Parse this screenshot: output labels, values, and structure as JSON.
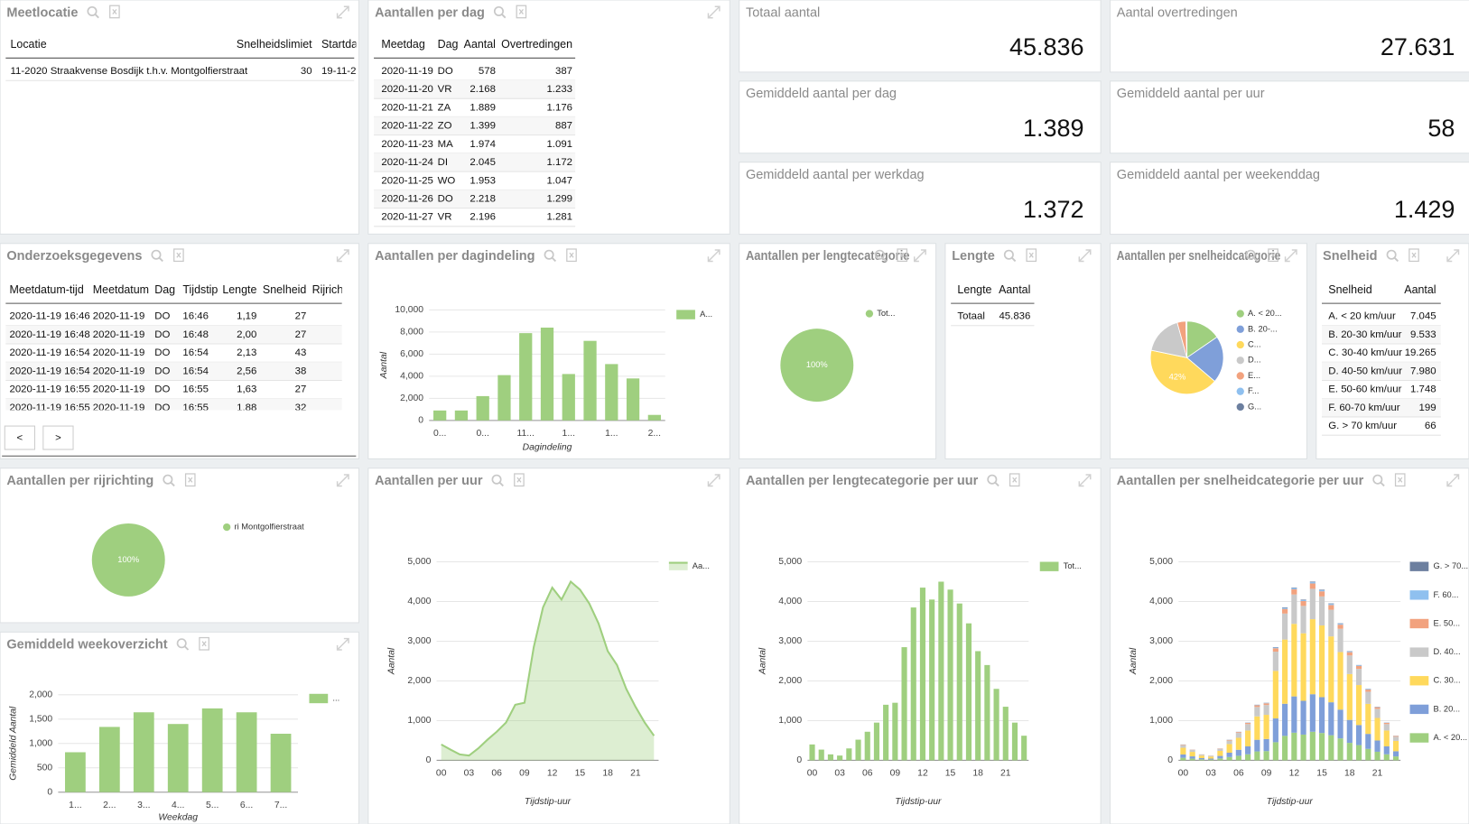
{
  "kpis": [
    {
      "label": "Totaal aantal",
      "value": "45.836"
    },
    {
      "label": "Aantal overtredingen",
      "value": "27.631"
    },
    {
      "label": "Gemiddeld aantal per dag",
      "value": "1.389"
    },
    {
      "label": "Gemiddeld aantal per uur",
      "value": "58"
    },
    {
      "label": "Gemiddeld aantal per werkdag",
      "value": "1.372"
    },
    {
      "label": "Gemiddeld aantal per weekenddag",
      "value": "1.429"
    }
  ],
  "tables": [
    {
      "title": "Meetlocatie",
      "headers": [
        "Locatie",
        "Snelheidslimiet",
        "Startda"
      ],
      "rows": [
        [
          "11-2020 Straakvense Bosdijk t.h.v. Montgolfierstraat",
          "30",
          "19-11-2"
        ]
      ]
    },
    {
      "title": "Aantallen per dag",
      "headers": [
        "Meetdag",
        "Dag",
        "Aantal",
        "Overtredingen"
      ],
      "rows": [
        [
          "2020-11-19",
          "DO",
          "578",
          "387"
        ],
        [
          "2020-11-20",
          "VR",
          "2.168",
          "1.233"
        ],
        [
          "2020-11-21",
          "ZA",
          "1.889",
          "1.176"
        ],
        [
          "2020-11-22",
          "ZO",
          "1.399",
          "887"
        ],
        [
          "2020-11-23",
          "MA",
          "1.974",
          "1.091"
        ],
        [
          "2020-11-24",
          "DI",
          "2.045",
          "1.172"
        ],
        [
          "2020-11-25",
          "WO",
          "1.953",
          "1.047"
        ],
        [
          "2020-11-26",
          "DO",
          "2.218",
          "1.299"
        ],
        [
          "2020-11-27",
          "VR",
          "2.196",
          "1.281"
        ]
      ]
    },
    {
      "title": "Onderzoeksgegevens",
      "headers": [
        "Meetdatum-tijd",
        "Meetdatum",
        "Dag",
        "Tijdstip",
        "Lengte",
        "Snelheid",
        "Rijrich"
      ],
      "rows": [
        [
          "2020-11-19 16:46",
          "2020-11-19",
          "DO",
          "16:46",
          "1,19",
          "27"
        ],
        [
          "2020-11-19 16:48",
          "2020-11-19",
          "DO",
          "16:48",
          "2,00",
          "27"
        ],
        [
          "2020-11-19 16:54",
          "2020-11-19",
          "DO",
          "16:54",
          "2,13",
          "43"
        ],
        [
          "2020-11-19 16:54",
          "2020-11-19",
          "DO",
          "16:54",
          "2,56",
          "38"
        ],
        [
          "2020-11-19 16:55",
          "2020-11-19",
          "DO",
          "16:55",
          "1,63",
          "27"
        ],
        [
          "2020-11-19 16:55",
          "2020-11-19",
          "DO",
          "16:55",
          "1,88",
          "32"
        ]
      ],
      "pager": [
        "<",
        ">"
      ]
    },
    {
      "title": "Lengte",
      "headers": [
        "Lengte",
        "Aantal"
      ],
      "rows": [
        [
          "Totaal",
          "45.836"
        ]
      ]
    },
    {
      "title": "Snelheid",
      "headers": [
        "Snelheid",
        "Aantal"
      ],
      "rows": [
        [
          "A. < 20 km/uur",
          "7.045"
        ],
        [
          "B. 20-30 km/uur",
          "9.533"
        ],
        [
          "C. 30-40 km/uur",
          "19.265"
        ],
        [
          "D. 40-50 km/uur",
          "7.980"
        ],
        [
          "E. 50-60 km/uur",
          "1.748"
        ],
        [
          "F. 60-70 km/uur",
          "199"
        ],
        [
          "G. > 70 km/uur",
          "66"
        ]
      ]
    }
  ],
  "chart_data": [
    {
      "type": "bar",
      "title": "Aantallen per dagindeling",
      "x_label": "Dagindeling",
      "y_label": "Aantal",
      "categories": [
        "0...",
        null,
        "0...",
        null,
        "11...",
        null,
        "1...",
        null,
        "1...",
        null,
        "2..."
      ],
      "series": [
        {
          "name": "A...",
          "color": "#9fcf7f",
          "values": [
            900,
            900,
            2200,
            4100,
            7900,
            8400,
            4200,
            7200,
            5100,
            3800,
            500
          ]
        }
      ],
      "ylim": [
        0,
        10000
      ],
      "yticks": [
        0,
        {
          "value": 2000,
          "label": "2,000"
        },
        {
          "value": 4000,
          "label": "4,000"
        },
        {
          "value": 6000,
          "label": "6,000"
        },
        {
          "value": 8000,
          "label": "8,000"
        },
        {
          "value": 10000,
          "label": "10,000"
        }
      ],
      "grid": true
    },
    {
      "type": "pie",
      "title": "Aantallen per lengtecategorie",
      "categories": [
        "Tot..."
      ],
      "values": [
        100
      ],
      "value_labels": [
        "100%"
      ],
      "colors": [
        "#9fcf7f"
      ]
    },
    {
      "type": "pie",
      "title": "Aantallen per snelheidcategorie",
      "categories": [
        "A. < 20...",
        "B. 20-...",
        "C...",
        "D...",
        "E...",
        "F...",
        "G..."
      ],
      "values": [
        15.4,
        20.8,
        42.0,
        17.4,
        3.8,
        0.4,
        0.1
      ],
      "value_labels": [
        null,
        null,
        "42%",
        null,
        null,
        null,
        null
      ],
      "colors": [
        "#9fcf7f",
        "#7f9fd9",
        "#ffd95c",
        "#c9c9c9",
        "#f2a27e",
        "#8fc0ef",
        "#6c7f9f"
      ]
    },
    {
      "type": "pie",
      "title": "Aantallen per rijrichting",
      "categories": [
        "ri Montgolfierstraat"
      ],
      "values": [
        100
      ],
      "value_labels": [
        "100%"
      ],
      "colors": [
        "#9fcf7f"
      ]
    },
    {
      "type": "bar",
      "title": "Gemiddeld weekoverzicht",
      "x_label": "Weekdag",
      "y_label": "Gemiddeld Aantal",
      "categories": [
        "1...",
        "2...",
        "3...",
        "4...",
        "5...",
        "6...",
        "7..."
      ],
      "series": [
        {
          "name": "...",
          "color": "#9fcf7f",
          "values": [
            820,
            1340,
            1640,
            1400,
            1720,
            1640,
            1200
          ]
        }
      ],
      "ylim": [
        0,
        2000
      ],
      "yticks": [
        0,
        500,
        {
          "value": 1000,
          "label": "1,000"
        },
        {
          "value": 1500,
          "label": "1,500"
        },
        {
          "value": 2000,
          "label": "2,000"
        }
      ],
      "grid": true
    },
    {
      "type": "area",
      "title": "Aantallen per uur",
      "x_label": "Tijdstip-uur",
      "y_label": "Aantal",
      "categories": [
        "00",
        null,
        null,
        "03",
        null,
        null,
        "06",
        null,
        null,
        "09",
        null,
        null,
        "12",
        null,
        null,
        "15",
        null,
        null,
        "18",
        null,
        null,
        "21",
        null,
        null
      ],
      "series": [
        {
          "name": "Aa...",
          "color": "#9fcf7f",
          "values": [
            400,
            270,
            150,
            120,
            300,
            520,
            720,
            950,
            1400,
            1450,
            2850,
            3850,
            4350,
            4050,
            4500,
            4300,
            3950,
            3450,
            2750,
            2400,
            1800,
            1350,
            950,
            620
          ]
        }
      ],
      "ylim": [
        0,
        5000
      ],
      "yticks": [
        0,
        {
          "value": 1000,
          "label": "1,000"
        },
        {
          "value": 2000,
          "label": "2,000"
        },
        {
          "value": 3000,
          "label": "3,000"
        },
        {
          "value": 4000,
          "label": "4,000"
        },
        {
          "value": 5000,
          "label": "5,000"
        }
      ],
      "grid": true
    },
    {
      "type": "bar",
      "title": "Aantallen per lengtecategorie per uur",
      "x_label": "Tijdstip-uur",
      "y_label": "Aantal",
      "categories": [
        "00",
        null,
        null,
        "03",
        null,
        null,
        "06",
        null,
        null,
        "09",
        null,
        null,
        "12",
        null,
        null,
        "15",
        null,
        null,
        "18",
        null,
        null,
        "21",
        null,
        null
      ],
      "series": [
        {
          "name": "Tot...",
          "color": "#9fcf7f",
          "values": [
            400,
            270,
            150,
            120,
            300,
            520,
            720,
            950,
            1400,
            1450,
            2850,
            3850,
            4350,
            4050,
            4500,
            4300,
            3950,
            3450,
            2750,
            2400,
            1800,
            1350,
            950,
            620
          ]
        }
      ],
      "ylim": [
        0,
        5000
      ],
      "yticks": [
        0,
        {
          "value": 1000,
          "label": "1,000"
        },
        {
          "value": 2000,
          "label": "2,000"
        },
        {
          "value": 3000,
          "label": "3,000"
        },
        {
          "value": 4000,
          "label": "4,000"
        },
        {
          "value": 5000,
          "label": "5,000"
        }
      ],
      "grid": true
    },
    {
      "type": "bar",
      "stacked": true,
      "title": "Aantallen per snelheidcategorie per uur",
      "x_label": "Tijdstip-uur",
      "y_label": "Aantal",
      "categories": [
        "00",
        null,
        null,
        "03",
        null,
        null,
        "06",
        null,
        null,
        "09",
        null,
        null,
        "12",
        null,
        null,
        "15",
        null,
        null,
        "18",
        null,
        null,
        "21",
        null,
        null
      ],
      "series": [
        {
          "name": "A. < 20...",
          "color": "#9fcf7f",
          "values": [
            64,
            43,
            24,
            19,
            48,
            83,
            115,
            152,
            224,
            232,
            456,
            616,
            696,
            648,
            720,
            688,
            632,
            552,
            440,
            384,
            288,
            216,
            152,
            99
          ]
        },
        {
          "name": "B. 20...",
          "color": "#7f9fd9",
          "values": [
            84,
            57,
            32,
            25,
            63,
            109,
            151,
            200,
            294,
            305,
            599,
            809,
            914,
            851,
            945,
            903,
            830,
            725,
            578,
            504,
            378,
            284,
            200,
            130
          ]
        },
        {
          "name": "C. 30...",
          "color": "#ffd95c",
          "values": [
            168,
            113,
            63,
            50,
            126,
            218,
            302,
            399,
            588,
            609,
            1197,
            1617,
            1827,
            1701,
            1890,
            1806,
            1659,
            1449,
            1155,
            1008,
            756,
            567,
            399,
            260
          ]
        },
        {
          "name": "D. 40...",
          "color": "#c9c9c9",
          "values": [
            68,
            46,
            26,
            20,
            51,
            88,
            122,
            162,
            238,
            247,
            485,
            655,
            740,
            689,
            765,
            731,
            672,
            587,
            468,
            408,
            306,
            230,
            162,
            105
          ]
        },
        {
          "name": "E. 50...",
          "color": "#f2a27e",
          "values": [
            12,
            8,
            5,
            4,
            9,
            16,
            22,
            29,
            42,
            44,
            86,
            116,
            131,
            122,
            135,
            129,
            119,
            104,
            83,
            72,
            54,
            41,
            29,
            19
          ]
        },
        {
          "name": "F. 60...",
          "color": "#8fc0ef",
          "values": [
            3,
            2,
            1,
            1,
            2,
            4,
            5,
            7,
            10,
            10,
            20,
            27,
            30,
            28,
            32,
            30,
            28,
            24,
            19,
            17,
            13,
            9,
            7,
            4
          ]
        },
        {
          "name": "G. > 70...",
          "color": "#6c7f9f",
          "values": [
            1,
            1,
            0,
            0,
            1,
            2,
            2,
            3,
            4,
            4,
            9,
            12,
            13,
            12,
            14,
            13,
            12,
            10,
            8,
            7,
            5,
            4,
            3,
            2
          ]
        }
      ],
      "ylim": [
        0,
        5000
      ],
      "yticks": [
        0,
        {
          "value": 1000,
          "label": "1,000"
        },
        {
          "value": 2000,
          "label": "2,000"
        },
        {
          "value": 3000,
          "label": "3,000"
        },
        {
          "value": 4000,
          "label": "4,000"
        },
        {
          "value": 5000,
          "label": "5,000"
        }
      ],
      "grid": true
    }
  ]
}
